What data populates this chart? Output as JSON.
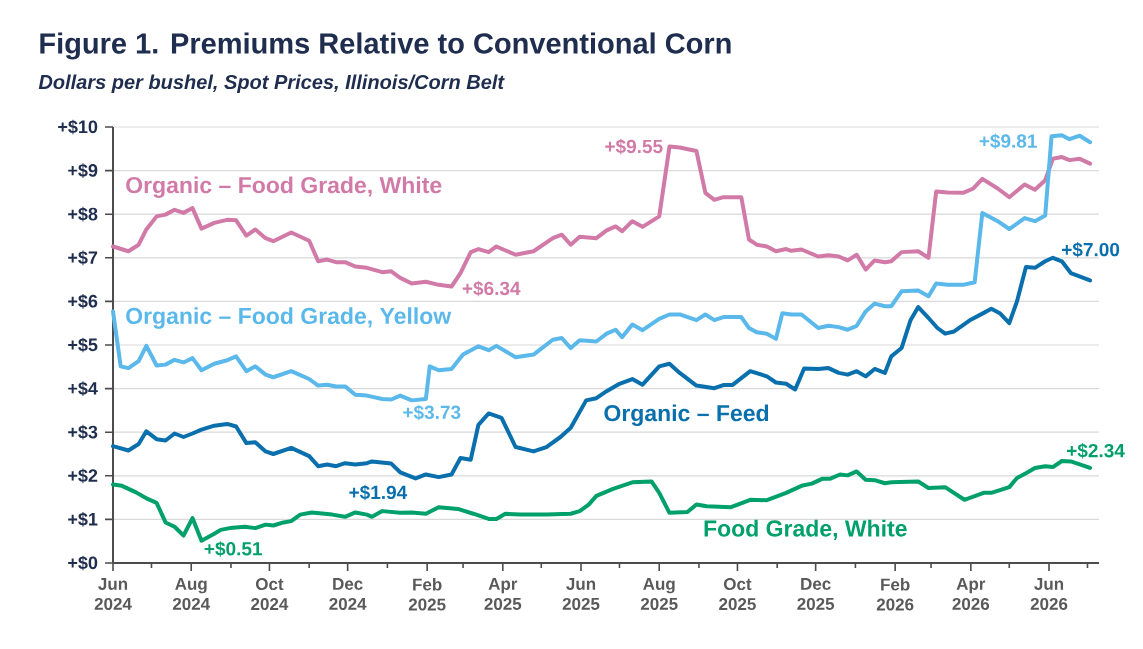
{
  "chart_data": {
    "type": "line",
    "title": "Figure 1. Premiums Relative to Conventional Corn",
    "subtitle": "Dollars per bushel, Spot Prices, Illinois/Corn Belt",
    "xlim": [
      "2024-06-01",
      "2026-07-10"
    ],
    "ylim": [
      0,
      10
    ],
    "xticks": [
      {
        "value": "2024-06-01",
        "label": "Jun 2024"
      },
      {
        "value": "2024-07-01",
        "label": null
      },
      {
        "value": "2024-08-01",
        "label": "Aug 2024"
      },
      {
        "value": "2024-09-01",
        "label": null
      },
      {
        "value": "2024-10-01",
        "label": "Oct 2024"
      },
      {
        "value": "2024-11-01",
        "label": null
      },
      {
        "value": "2024-12-01",
        "label": "Dec 2024"
      },
      {
        "value": "2025-01-01",
        "label": null
      },
      {
        "value": "2025-02-01",
        "label": "Feb 2025"
      },
      {
        "value": "2025-03-01",
        "label": null
      },
      {
        "value": "2025-04-01",
        "label": "Apr 2025"
      },
      {
        "value": "2025-05-01",
        "label": null
      },
      {
        "value": "2025-06-01",
        "label": "Jun 2025"
      },
      {
        "value": "2025-07-01",
        "label": null
      },
      {
        "value": "2025-08-01",
        "label": "Aug 2025"
      },
      {
        "value": "2025-09-01",
        "label": null
      },
      {
        "value": "2025-10-01",
        "label": "Oct 2025"
      },
      {
        "value": "2025-11-01",
        "label": null
      },
      {
        "value": "2025-12-01",
        "label": "Dec 2025"
      },
      {
        "value": "2026-01-01",
        "label": null
      },
      {
        "value": "2026-02-01",
        "label": "Feb 2026"
      },
      {
        "value": "2026-03-01",
        "label": null
      },
      {
        "value": "2026-04-01",
        "label": "Apr 2026"
      },
      {
        "value": "2026-05-01",
        "label": null
      },
      {
        "value": "2026-06-01",
        "label": "Jun 2026"
      },
      {
        "value": "2026-07-01",
        "label": null
      }
    ],
    "yticks": [
      {
        "value": 0,
        "label": "+$0"
      },
      {
        "value": 1,
        "label": "+$1"
      },
      {
        "value": 2,
        "label": "+$2"
      },
      {
        "value": 3,
        "label": "+$3"
      },
      {
        "value": 4,
        "label": "+$4"
      },
      {
        "value": 5,
        "label": "+$5"
      },
      {
        "value": 6,
        "label": "+$6"
      },
      {
        "value": 7,
        "label": "+$7"
      },
      {
        "value": 8,
        "label": "+$8"
      },
      {
        "value": 9,
        "label": "+$9"
      },
      {
        "value": 10,
        "label": "+$10"
      }
    ],
    "grid": "y",
    "marker": "none",
    "series": [
      {
        "name": "Organic – Food Grade, White",
        "color": "#d17aa8",
        "x": [
          "2024-06-01",
          "2024-06-13",
          "2024-06-21",
          "2024-06-27",
          "2024-07-05",
          "2024-07-12",
          "2024-07-19",
          "2024-07-26",
          "2024-08-02",
          "2024-08-09",
          "2024-08-19",
          "2024-08-29",
          "2024-09-05",
          "2024-09-13",
          "2024-09-20",
          "2024-09-28",
          "2024-10-04",
          "2024-10-18",
          "2024-11-01",
          "2024-11-08",
          "2024-11-15",
          "2024-11-22",
          "2024-11-29",
          "2024-12-07",
          "2024-12-16",
          "2024-12-28",
          "2025-01-04",
          "2025-01-11",
          "2025-01-20",
          "2025-01-31",
          "2025-02-10",
          "2025-02-20",
          "2025-02-27",
          "2025-03-07",
          "2025-03-13",
          "2025-03-21",
          "2025-03-27",
          "2025-04-11",
          "2025-04-25",
          "2025-05-10",
          "2025-05-17",
          "2025-05-24",
          "2025-05-31",
          "2025-06-13",
          "2025-06-21",
          "2025-06-28",
          "2025-07-03",
          "2025-07-11",
          "2025-07-19",
          "2025-08-01",
          "2025-08-09",
          "2025-08-17",
          "2025-08-30",
          "2025-09-06",
          "2025-09-13",
          "2025-09-20",
          "2025-10-04",
          "2025-10-10",
          "2025-10-16",
          "2025-10-24",
          "2025-10-31",
          "2025-11-08",
          "2025-11-12",
          "2025-11-20",
          "2025-12-03",
          "2025-12-11",
          "2025-12-19",
          "2025-12-26",
          "2026-01-02",
          "2026-01-09",
          "2026-01-16",
          "2026-01-24",
          "2026-01-29",
          "2026-02-06",
          "2026-02-19",
          "2026-02-27",
          "2026-03-05",
          "2026-03-14",
          "2026-03-26",
          "2026-04-03",
          "2026-04-10",
          "2026-04-22",
          "2026-05-01",
          "2026-05-13",
          "2026-05-21",
          "2026-05-29",
          "2026-06-04",
          "2026-06-11",
          "2026-06-17",
          "2026-06-25",
          "2026-07-03"
        ],
        "values": [
          7.26,
          7.15,
          7.3,
          7.65,
          7.95,
          7.99,
          8.1,
          8.03,
          8.14,
          7.67,
          7.8,
          7.87,
          7.86,
          7.51,
          7.65,
          7.45,
          7.38,
          7.58,
          7.39,
          6.92,
          6.96,
          6.9,
          6.9,
          6.8,
          6.77,
          6.67,
          6.69,
          6.54,
          6.41,
          6.45,
          6.38,
          6.34,
          6.65,
          7.13,
          7.2,
          7.13,
          7.26,
          7.07,
          7.15,
          7.45,
          7.53,
          7.3,
          7.48,
          7.45,
          7.63,
          7.72,
          7.61,
          7.84,
          7.71,
          7.95,
          9.55,
          9.53,
          9.45,
          8.49,
          8.33,
          8.39,
          8.39,
          7.42,
          7.3,
          7.26,
          7.15,
          7.2,
          7.16,
          7.19,
          7.03,
          7.06,
          7.03,
          6.94,
          7.07,
          6.73,
          6.94,
          6.9,
          6.92,
          7.13,
          7.15,
          7.0,
          8.52,
          8.5,
          8.49,
          8.59,
          8.81,
          8.59,
          8.39,
          8.68,
          8.56,
          8.78,
          9.27,
          9.31,
          9.24,
          9.27,
          9.16
        ]
      },
      {
        "name": "Organic – Food Grade, Yellow",
        "color": "#5bb8ea",
        "x": [
          "2024-06-01",
          "2024-06-07",
          "2024-06-13",
          "2024-06-21",
          "2024-06-27",
          "2024-07-05",
          "2024-07-12",
          "2024-07-19",
          "2024-07-26",
          "2024-08-02",
          "2024-08-09",
          "2024-08-19",
          "2024-08-29",
          "2024-09-05",
          "2024-09-13",
          "2024-09-20",
          "2024-09-28",
          "2024-10-04",
          "2024-10-18",
          "2024-11-01",
          "2024-11-08",
          "2024-11-15",
          "2024-11-22",
          "2024-11-29",
          "2024-12-07",
          "2024-12-16",
          "2024-12-28",
          "2025-01-04",
          "2025-01-11",
          "2025-01-20",
          "2025-01-31",
          "2025-02-03",
          "2025-02-10",
          "2025-02-20",
          "2025-03-01",
          "2025-03-13",
          "2025-03-21",
          "2025-03-27",
          "2025-04-11",
          "2025-04-25",
          "2025-05-10",
          "2025-05-17",
          "2025-05-24",
          "2025-05-31",
          "2025-06-13",
          "2025-06-21",
          "2025-06-28",
          "2025-07-03",
          "2025-07-11",
          "2025-07-19",
          "2025-08-01",
          "2025-08-09",
          "2025-08-17",
          "2025-08-30",
          "2025-09-06",
          "2025-09-13",
          "2025-09-20",
          "2025-10-04",
          "2025-10-10",
          "2025-10-16",
          "2025-10-24",
          "2025-10-31",
          "2025-11-05",
          "2025-11-12",
          "2025-11-20",
          "2025-12-03",
          "2025-12-11",
          "2025-12-19",
          "2025-12-26",
          "2026-01-02",
          "2026-01-09",
          "2026-01-16",
          "2026-01-24",
          "2026-01-29",
          "2026-02-06",
          "2026-02-19",
          "2026-02-27",
          "2026-03-05",
          "2026-03-14",
          "2026-03-26",
          "2026-04-04",
          "2026-04-10",
          "2026-04-22",
          "2026-05-01",
          "2026-05-13",
          "2026-05-21",
          "2026-05-29",
          "2026-06-03",
          "2026-06-11",
          "2026-06-17",
          "2026-06-25",
          "2026-07-03"
        ],
        "values": [
          5.77,
          4.51,
          4.47,
          4.63,
          4.98,
          4.53,
          4.55,
          4.66,
          4.6,
          4.7,
          4.42,
          4.57,
          4.65,
          4.74,
          4.4,
          4.51,
          4.32,
          4.26,
          4.4,
          4.22,
          4.07,
          4.09,
          4.05,
          4.05,
          3.86,
          3.84,
          3.76,
          3.75,
          3.84,
          3.73,
          3.76,
          4.51,
          4.42,
          4.45,
          4.78,
          4.97,
          4.88,
          4.98,
          4.72,
          4.78,
          5.12,
          5.16,
          4.93,
          5.11,
          5.08,
          5.26,
          5.35,
          5.18,
          5.47,
          5.34,
          5.6,
          5.7,
          5.7,
          5.57,
          5.7,
          5.57,
          5.64,
          5.64,
          5.39,
          5.29,
          5.26,
          5.14,
          5.73,
          5.7,
          5.7,
          5.39,
          5.44,
          5.41,
          5.35,
          5.44,
          5.77,
          5.95,
          5.89,
          5.89,
          6.23,
          6.25,
          6.12,
          6.41,
          6.38,
          6.38,
          6.44,
          8.03,
          7.84,
          7.66,
          7.91,
          7.84,
          7.97,
          9.79,
          9.81,
          9.72,
          9.8,
          9.65
        ]
      },
      {
        "name": "Organic – Feed",
        "color": "#0a6fad",
        "x": [
          "2024-06-01",
          "2024-06-13",
          "2024-06-21",
          "2024-06-27",
          "2024-07-05",
          "2024-07-12",
          "2024-07-19",
          "2024-07-26",
          "2024-08-02",
          "2024-08-09",
          "2024-08-19",
          "2024-08-29",
          "2024-09-05",
          "2024-09-13",
          "2024-09-20",
          "2024-09-28",
          "2024-10-04",
          "2024-10-18",
          "2024-11-01",
          "2024-11-08",
          "2024-11-15",
          "2024-11-22",
          "2024-11-29",
          "2024-12-07",
          "2024-12-16",
          "2024-12-20",
          "2025-01-04",
          "2025-01-11",
          "2025-01-23",
          "2025-01-31",
          "2025-02-10",
          "2025-02-20",
          "2025-02-27",
          "2025-03-07",
          "2025-03-13",
          "2025-03-21",
          "2025-03-31",
          "2025-04-11",
          "2025-04-25",
          "2025-05-05",
          "2025-05-16",
          "2025-05-24",
          "2025-06-05",
          "2025-06-13",
          "2025-06-21",
          "2025-07-01",
          "2025-07-11",
          "2025-07-19",
          "2025-08-01",
          "2025-08-09",
          "2025-08-17",
          "2025-08-30",
          "2025-09-13",
          "2025-09-20",
          "2025-09-27",
          "2025-10-11",
          "2025-10-24",
          "2025-10-31",
          "2025-11-08",
          "2025-11-15",
          "2025-11-22",
          "2025-12-03",
          "2025-12-11",
          "2025-12-19",
          "2025-12-26",
          "2026-01-02",
          "2026-01-09",
          "2026-01-16",
          "2026-01-24",
          "2026-01-29",
          "2026-02-06",
          "2026-02-13",
          "2026-02-19",
          "2026-02-27",
          "2026-03-06",
          "2026-03-12",
          "2026-03-19",
          "2026-04-01",
          "2026-04-10",
          "2026-04-17",
          "2026-04-24",
          "2026-05-01",
          "2026-05-07",
          "2026-05-14",
          "2026-05-21",
          "2026-05-29",
          "2026-06-04",
          "2026-06-11",
          "2026-06-18",
          "2026-07-03"
        ],
        "values": [
          2.68,
          2.58,
          2.73,
          3.02,
          2.84,
          2.81,
          2.97,
          2.89,
          2.97,
          3.06,
          3.15,
          3.19,
          3.13,
          2.75,
          2.77,
          2.56,
          2.5,
          2.64,
          2.45,
          2.22,
          2.26,
          2.22,
          2.29,
          2.26,
          2.29,
          2.33,
          2.28,
          2.08,
          1.94,
          2.03,
          1.97,
          2.03,
          2.41,
          2.37,
          3.17,
          3.43,
          3.33,
          2.66,
          2.56,
          2.66,
          2.89,
          3.1,
          3.73,
          3.78,
          3.94,
          4.11,
          4.22,
          4.09,
          4.51,
          4.57,
          4.36,
          4.07,
          4.01,
          4.08,
          4.08,
          4.4,
          4.28,
          4.14,
          4.11,
          3.98,
          4.46,
          4.45,
          4.47,
          4.36,
          4.32,
          4.4,
          4.28,
          4.45,
          4.36,
          4.74,
          4.93,
          5.57,
          5.87,
          5.62,
          5.39,
          5.26,
          5.31,
          5.58,
          5.72,
          5.83,
          5.72,
          5.5,
          6.0,
          6.79,
          6.77,
          6.92,
          7.0,
          6.92,
          6.65,
          6.48
        ]
      },
      {
        "name": "Food Grade, White",
        "color": "#00a06b",
        "x": [
          "2024-06-01",
          "2024-06-08",
          "2024-06-19",
          "2024-06-28",
          "2024-07-05",
          "2024-07-12",
          "2024-07-19",
          "2024-07-26",
          "2024-08-02",
          "2024-08-09",
          "2024-08-19",
          "2024-08-24",
          "2024-08-31",
          "2024-09-12",
          "2024-09-20",
          "2024-09-28",
          "2024-10-04",
          "2024-10-12",
          "2024-10-18",
          "2024-10-25",
          "2024-11-03",
          "2024-11-19",
          "2024-11-29",
          "2024-12-07",
          "2024-12-16",
          "2024-12-20",
          "2024-12-28",
          "2025-01-11",
          "2025-01-20",
          "2025-01-31",
          "2025-02-10",
          "2025-02-25",
          "2025-03-09",
          "2025-03-21",
          "2025-03-27",
          "2025-04-03",
          "2025-04-15",
          "2025-05-05",
          "2025-05-24",
          "2025-05-31",
          "2025-06-07",
          "2025-06-13",
          "2025-06-26",
          "2025-07-11",
          "2025-07-26",
          "2025-08-01",
          "2025-08-09",
          "2025-08-23",
          "2025-08-30",
          "2025-09-07",
          "2025-09-26",
          "2025-10-11",
          "2025-10-24",
          "2025-11-08",
          "2025-11-20",
          "2025-11-28",
          "2025-12-06",
          "2025-12-12",
          "2025-12-20",
          "2025-12-26",
          "2026-01-02",
          "2026-01-09",
          "2026-01-16",
          "2026-01-24",
          "2026-01-29",
          "2026-02-19",
          "2026-02-27",
          "2026-03-12",
          "2026-03-27",
          "2026-04-11",
          "2026-04-17",
          "2026-05-01",
          "2026-05-07",
          "2026-05-14",
          "2026-05-21",
          "2026-05-29",
          "2026-06-04",
          "2026-06-11",
          "2026-06-18",
          "2026-07-03"
        ],
        "values": [
          1.8,
          1.77,
          1.62,
          1.47,
          1.38,
          0.93,
          0.83,
          0.63,
          1.03,
          0.51,
          0.67,
          0.76,
          0.8,
          0.83,
          0.8,
          0.88,
          0.86,
          0.93,
          0.96,
          1.11,
          1.16,
          1.11,
          1.06,
          1.16,
          1.11,
          1.06,
          1.19,
          1.15,
          1.16,
          1.13,
          1.28,
          1.24,
          1.13,
          1.01,
          1.01,
          1.13,
          1.11,
          1.11,
          1.13,
          1.19,
          1.34,
          1.54,
          1.7,
          1.85,
          1.87,
          1.61,
          1.15,
          1.17,
          1.34,
          1.3,
          1.28,
          1.45,
          1.44,
          1.61,
          1.77,
          1.82,
          1.93,
          1.93,
          2.03,
          2.01,
          2.1,
          1.91,
          1.9,
          1.83,
          1.85,
          1.87,
          1.72,
          1.74,
          1.45,
          1.61,
          1.61,
          1.74,
          1.95,
          2.06,
          2.18,
          2.22,
          2.2,
          2.34,
          2.33,
          2.18
        ]
      }
    ],
    "annotations": [
      {
        "text": "+$9.55",
        "x": "2025-08-09",
        "y": 9.55
      },
      {
        "text": "+$6.34",
        "x": "2025-02-20",
        "y": 6.34
      },
      {
        "text": "+$9.81",
        "x": "2026-06-11",
        "y": 9.81
      },
      {
        "text": "+$3.73",
        "x": "2025-01-20",
        "y": 3.73
      },
      {
        "text": "+$7.00",
        "x": "2026-06-04",
        "y": 7.0
      },
      {
        "text": "+$1.94",
        "x": "2025-01-23",
        "y": 1.94
      },
      {
        "text": "+$2.34",
        "x": "2026-06-11",
        "y": 2.34
      },
      {
        "text": "+$0.51",
        "x": "2024-08-09",
        "y": 0.51
      }
    ]
  }
}
